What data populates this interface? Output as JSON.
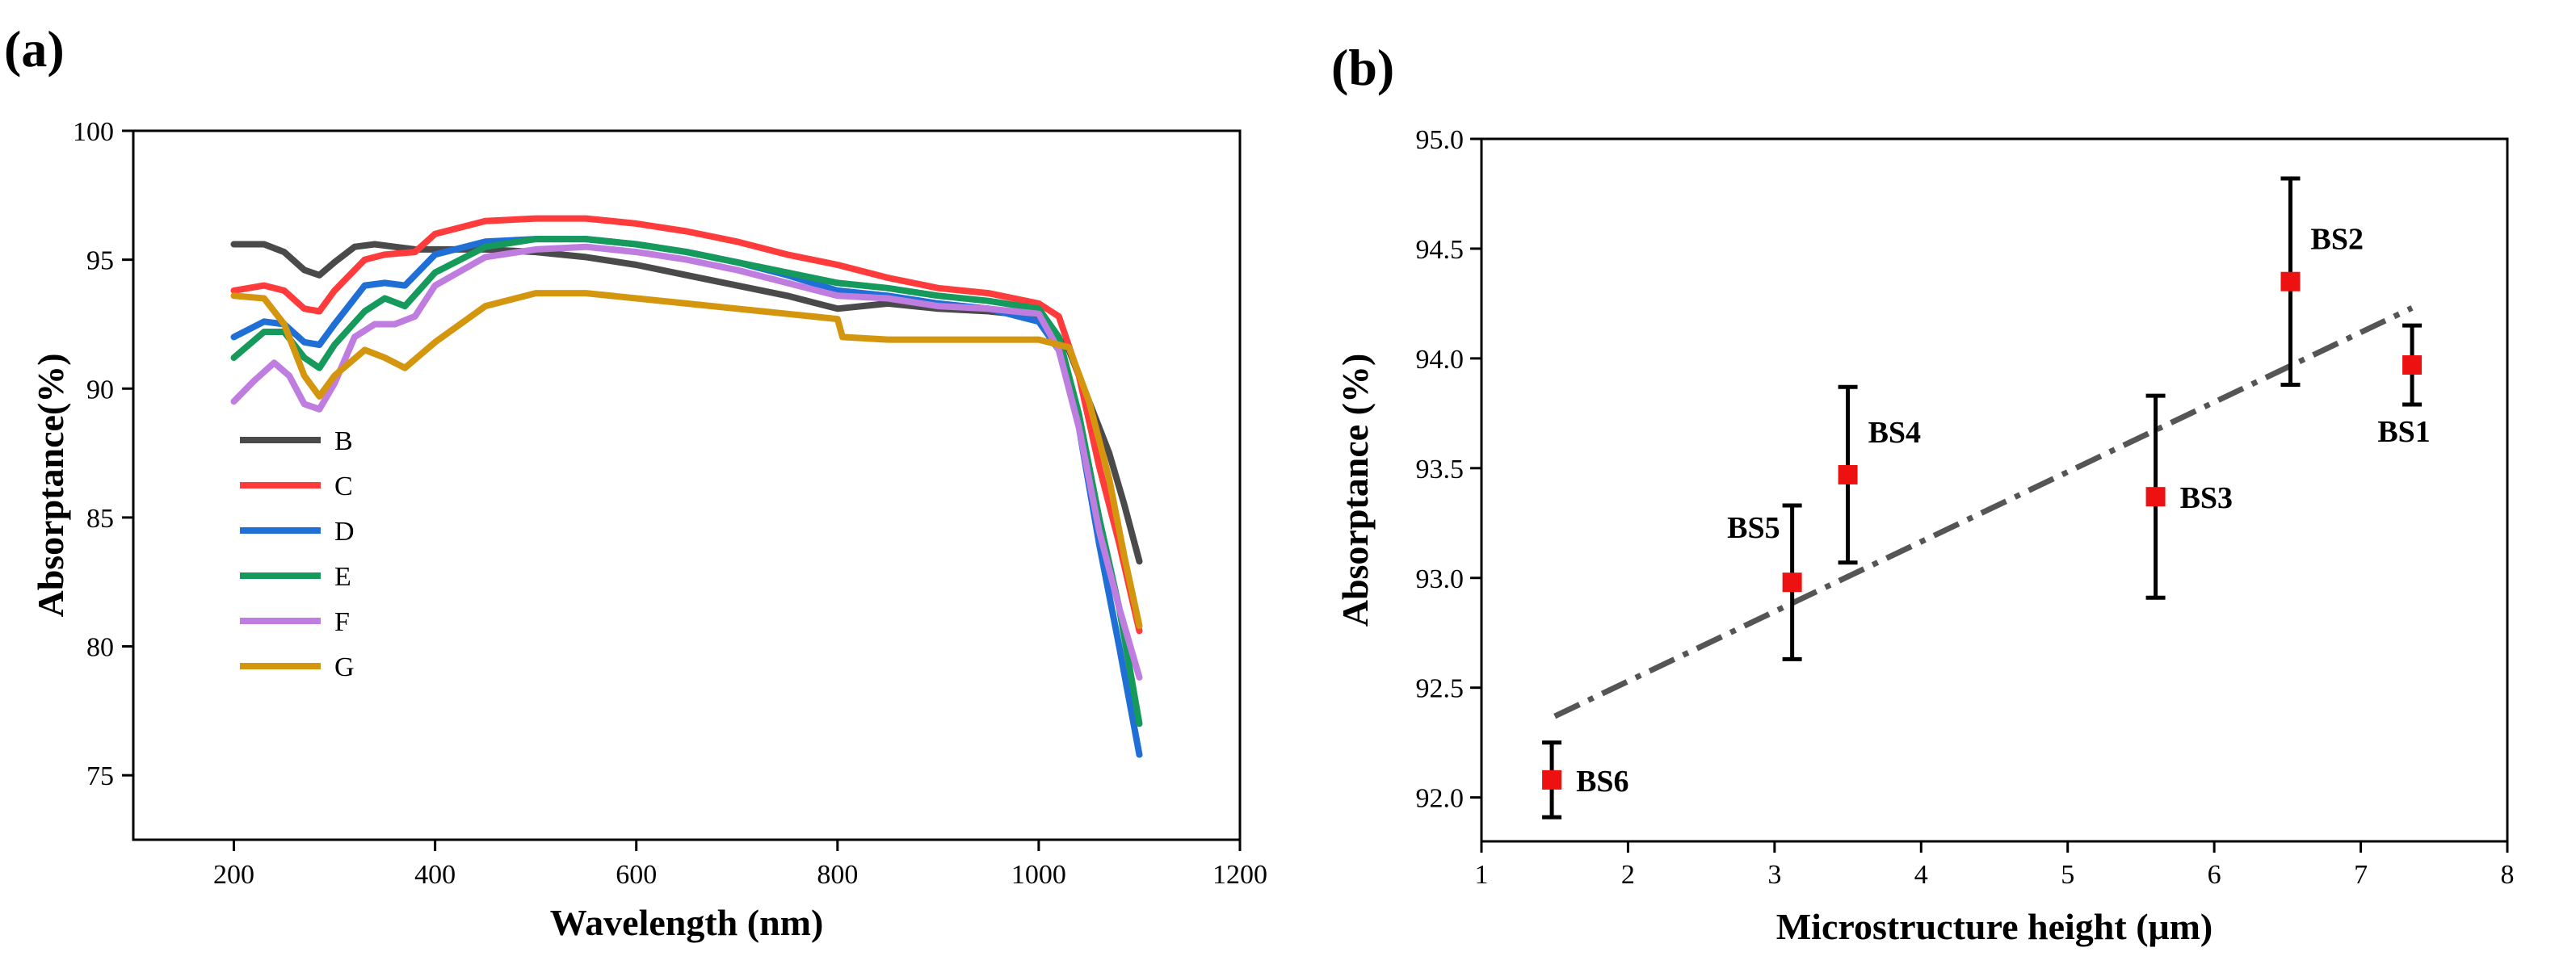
{
  "figure": {
    "panels": [
      "(a)",
      "(b)"
    ]
  },
  "chart_data": [
    {
      "id": "a",
      "type": "line",
      "panel_label": "(a)",
      "title": "",
      "xlabel": "Wavelength (nm)",
      "ylabel": "Absorptance(%)",
      "xlim": [
        100,
        1200
      ],
      "ylim": [
        72.5,
        100
      ],
      "xticks": [
        200,
        400,
        600,
        800,
        1000,
        1200
      ],
      "yticks": [
        75,
        80,
        85,
        90,
        95,
        100
      ],
      "legend_position": "left-middle",
      "series": [
        {
          "name": "B",
          "color": "#4a4a4a",
          "x": [
            200,
            230,
            250,
            270,
            285,
            300,
            320,
            340,
            360,
            380,
            400,
            450,
            500,
            550,
            600,
            650,
            700,
            750,
            800,
            850,
            900,
            950,
            1000,
            1030,
            1050,
            1070,
            1085,
            1100
          ],
          "y": [
            95.6,
            95.6,
            95.3,
            94.6,
            94.4,
            94.9,
            95.5,
            95.6,
            95.5,
            95.4,
            95.4,
            95.4,
            95.3,
            95.1,
            94.8,
            94.4,
            94.0,
            93.6,
            93.1,
            93.3,
            93.1,
            93.0,
            92.8,
            91.5,
            89.5,
            87.5,
            85.5,
            83.3
          ]
        },
        {
          "name": "C",
          "color": "#ff3b3b",
          "x": [
            200,
            230,
            250,
            270,
            285,
            300,
            330,
            350,
            380,
            400,
            450,
            500,
            550,
            600,
            650,
            700,
            750,
            800,
            850,
            900,
            950,
            1000,
            1020,
            1040,
            1060,
            1080,
            1100
          ],
          "y": [
            93.8,
            94.0,
            93.8,
            93.1,
            93.0,
            93.8,
            95.0,
            95.2,
            95.3,
            96.0,
            96.5,
            96.6,
            96.6,
            96.4,
            96.1,
            95.7,
            95.2,
            94.8,
            94.3,
            93.9,
            93.7,
            93.3,
            92.8,
            90.5,
            87.0,
            84.0,
            80.6
          ]
        },
        {
          "name": "D",
          "color": "#1f6fd6",
          "x": [
            200,
            230,
            250,
            270,
            285,
            300,
            330,
            350,
            370,
            400,
            450,
            500,
            550,
            600,
            650,
            700,
            750,
            800,
            850,
            900,
            950,
            1000,
            1020,
            1040,
            1060,
            1080,
            1100
          ],
          "y": [
            92.0,
            92.6,
            92.5,
            91.8,
            91.7,
            92.5,
            94.0,
            94.1,
            94.0,
            95.2,
            95.7,
            95.8,
            95.8,
            95.6,
            95.3,
            94.9,
            94.4,
            93.8,
            93.6,
            93.3,
            93.1,
            92.6,
            91.5,
            88.5,
            84.0,
            80.0,
            75.8
          ]
        },
        {
          "name": "E",
          "color": "#159a5c",
          "x": [
            200,
            230,
            250,
            270,
            285,
            300,
            330,
            350,
            370,
            400,
            450,
            500,
            550,
            600,
            650,
            700,
            750,
            800,
            850,
            900,
            950,
            1000,
            1020,
            1040,
            1060,
            1080,
            1100
          ],
          "y": [
            91.2,
            92.2,
            92.2,
            91.2,
            90.8,
            91.7,
            93.0,
            93.5,
            93.2,
            94.5,
            95.5,
            95.8,
            95.8,
            95.6,
            95.3,
            94.9,
            94.5,
            94.1,
            93.9,
            93.6,
            93.4,
            93.1,
            92.0,
            89.0,
            85.0,
            81.5,
            77.0
          ]
        },
        {
          "name": "F",
          "color": "#c07de0",
          "x": [
            200,
            220,
            240,
            255,
            270,
            285,
            300,
            320,
            340,
            360,
            380,
            400,
            450,
            500,
            550,
            600,
            650,
            700,
            750,
            800,
            850,
            900,
            950,
            1000,
            1020,
            1040,
            1060,
            1080,
            1100
          ],
          "y": [
            89.5,
            90.3,
            91.0,
            90.5,
            89.4,
            89.2,
            90.2,
            92.0,
            92.5,
            92.5,
            92.8,
            94.0,
            95.1,
            95.4,
            95.5,
            95.3,
            95.0,
            94.6,
            94.1,
            93.6,
            93.5,
            93.2,
            93.1,
            92.9,
            91.5,
            88.5,
            84.5,
            81.5,
            78.8
          ]
        },
        {
          "name": "G",
          "color": "#d4960f",
          "x": [
            200,
            230,
            250,
            270,
            285,
            300,
            330,
            350,
            370,
            400,
            450,
            500,
            550,
            600,
            650,
            700,
            750,
            800,
            805,
            850,
            900,
            950,
            1000,
            1030,
            1050,
            1070,
            1085,
            1100
          ],
          "y": [
            93.6,
            93.5,
            92.5,
            90.5,
            89.7,
            90.5,
            91.5,
            91.2,
            90.8,
            91.8,
            93.2,
            93.7,
            93.7,
            93.5,
            93.3,
            93.1,
            92.9,
            92.7,
            92.0,
            91.9,
            91.9,
            91.9,
            91.9,
            91.6,
            89.5,
            86.5,
            83.5,
            80.8
          ]
        }
      ]
    },
    {
      "id": "b",
      "type": "scatter",
      "panel_label": "(b)",
      "title": "",
      "xlabel": "Microstructure height (μm)",
      "ylabel": "Absorptance (%)",
      "xlim": [
        1,
        8
      ],
      "ylim": [
        91.8,
        95.0
      ],
      "xticks": [
        1,
        2,
        3,
        4,
        5,
        6,
        7,
        8
      ],
      "yticks": [
        "92.0",
        "92.5",
        "93.0",
        "93.5",
        "94.0",
        "94.5",
        "95.0"
      ],
      "marker_color": "#ee1111",
      "fit_color": "#555555",
      "fit_line": {
        "x": [
          1.5,
          7.35
        ],
        "y": [
          92.37,
          94.23
        ]
      },
      "points": [
        {
          "label": "BS1",
          "x": 7.35,
          "y": 93.97,
          "err_low": 0.18,
          "err_high": 0.18,
          "label_pos": "below"
        },
        {
          "label": "BS2",
          "x": 6.52,
          "y": 94.35,
          "err_low": 0.47,
          "err_high": 0.47,
          "label_pos": "right-up"
        },
        {
          "label": "BS3",
          "x": 5.6,
          "y": 93.37,
          "err_low": 0.46,
          "err_high": 0.46,
          "label_pos": "right"
        },
        {
          "label": "BS4",
          "x": 3.5,
          "y": 93.47,
          "err_low": 0.4,
          "err_high": 0.4,
          "label_pos": "right-up"
        },
        {
          "label": "BS5",
          "x": 3.12,
          "y": 92.98,
          "err_low": 0.35,
          "err_high": 0.35,
          "label_pos": "left-up"
        },
        {
          "label": "BS6",
          "x": 1.48,
          "y": 92.08,
          "err_low": 0.17,
          "err_high": 0.17,
          "label_pos": "right"
        }
      ]
    }
  ]
}
